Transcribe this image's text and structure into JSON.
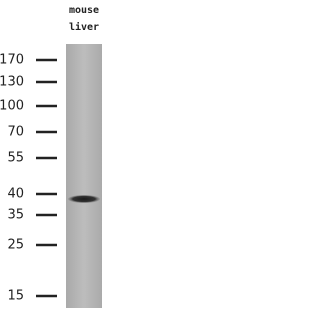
{
  "lane": {
    "label_lines": [
      "mouse",
      "liver"
    ]
  },
  "markers": {
    "labels": [
      "170",
      "130",
      "100",
      "70",
      "55",
      "40",
      "35",
      "25",
      "15"
    ]
  }
}
